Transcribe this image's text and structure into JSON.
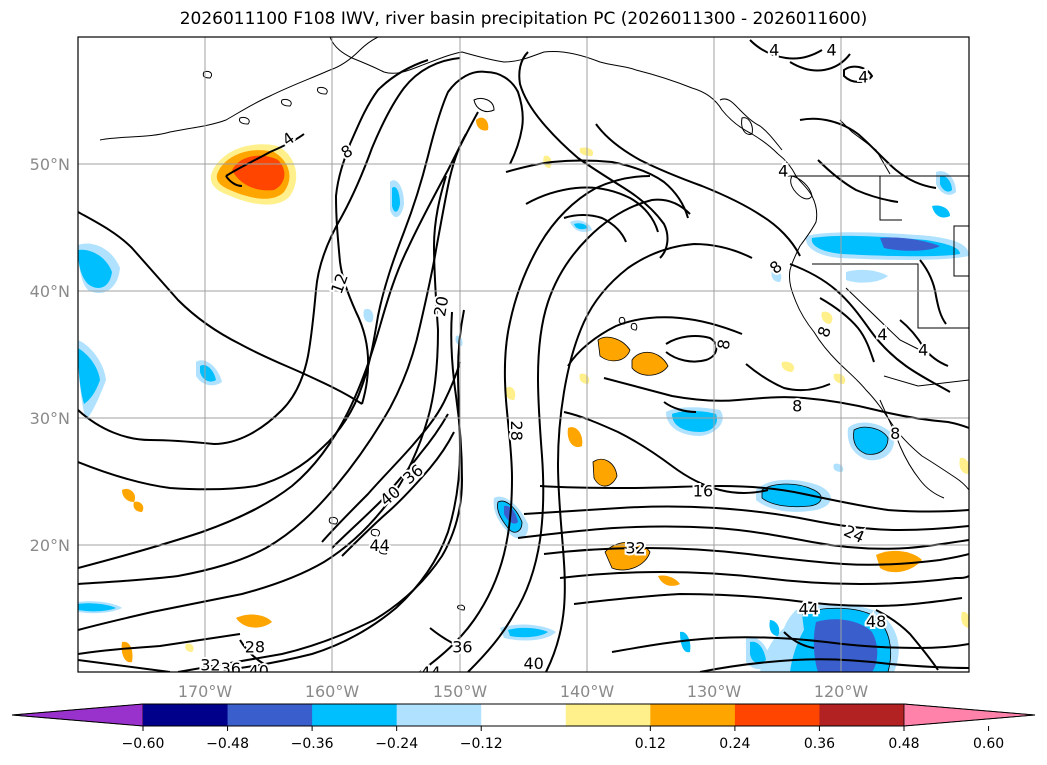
{
  "title": "2026011100 F108 IWV, river basin precipitation PC (2026011300 - 2026011600)",
  "map": {
    "lon_range": [
      -180,
      -110
    ],
    "lat_range": [
      10,
      60
    ],
    "lat_labels": [
      "50°N",
      "40°N",
      "30°N",
      "20°N"
    ],
    "lon_labels": [
      "170°W",
      "160°W",
      "150°W",
      "140°W",
      "130°W",
      "120°W"
    ],
    "gridlines": true,
    "contour_labels": [
      {
        "text": "4",
        "lon": -163.5,
        "lat": 52.0,
        "rot": -35
      },
      {
        "text": "8",
        "lon": -158.9,
        "lat": 51.0,
        "rot": -30
      },
      {
        "text": "12",
        "lon": -159.5,
        "lat": 40.6,
        "rot": -70
      },
      {
        "text": "20",
        "lon": -151.5,
        "lat": 38.8,
        "rot": -80
      },
      {
        "text": "28",
        "lon": -145.5,
        "lat": 29.0,
        "rot": 90
      },
      {
        "text": "36",
        "lon": -153.7,
        "lat": 25.6,
        "rot": -40
      },
      {
        "text": "40",
        "lon": -155.5,
        "lat": 23.9,
        "rot": -40
      },
      {
        "text": "44",
        "lon": -156.3,
        "lat": 20.0,
        "rot": 0
      },
      {
        "text": "16",
        "lon": -130.9,
        "lat": 24.3,
        "rot": 0
      },
      {
        "text": "24",
        "lon": -119.0,
        "lat": 20.9,
        "rot": 25
      },
      {
        "text": "32",
        "lon": -136.2,
        "lat": 19.8,
        "rot": 0
      },
      {
        "text": "44",
        "lon": -122.6,
        "lat": 15.0,
        "rot": 0
      },
      {
        "text": "48",
        "lon": -117.3,
        "lat": 14.0,
        "rot": 0
      },
      {
        "text": "28",
        "lon": -166.1,
        "lat": 12.0,
        "rot": 0
      },
      {
        "text": "32",
        "lon": -169.6,
        "lat": 10.6,
        "rot": 0
      },
      {
        "text": "36",
        "lon": -168.0,
        "lat": 10.3,
        "rot": 0
      },
      {
        "text": "40",
        "lon": -165.8,
        "lat": 10.1,
        "rot": 0
      },
      {
        "text": "36",
        "lon": -149.8,
        "lat": 12.0,
        "rot": 0
      },
      {
        "text": "40",
        "lon": -144.2,
        "lat": 10.7,
        "rot": 0
      },
      {
        "text": "44",
        "lon": -152.3,
        "lat": 10.0,
        "rot": 0
      },
      {
        "text": "8",
        "lon": -125.2,
        "lat": 41.9,
        "rot": -40
      },
      {
        "text": "8",
        "lon": -129.3,
        "lat": 35.8,
        "rot": -80
      },
      {
        "text": "8",
        "lon": -123.5,
        "lat": 31.0,
        "rot": 0
      },
      {
        "text": "8",
        "lon": -121.4,
        "lat": 36.8,
        "rot": -70
      },
      {
        "text": "4",
        "lon": -116.8,
        "lat": 36.6,
        "rot": 0
      },
      {
        "text": "4",
        "lon": -113.6,
        "lat": 35.4,
        "rot": 0
      },
      {
        "text": "8",
        "lon": -115.8,
        "lat": 28.8,
        "rot": 0
      },
      {
        "text": "4",
        "lon": -125.3,
        "lat": 59.0,
        "rot": 0
      },
      {
        "text": "4",
        "lon": -120.8,
        "lat": 59.0,
        "rot": 0
      },
      {
        "text": "4",
        "lon": -118.3,
        "lat": 56.9,
        "rot": 0
      },
      {
        "text": "4",
        "lon": -124.6,
        "lat": 49.5,
        "rot": 0
      }
    ]
  },
  "colorbar": {
    "colors": [
      "#9932cc",
      "#00008b",
      "#3a5fcd",
      "#00bfff",
      "#b0e2ff",
      "#ffffff",
      "#fff08c",
      "#ffa500",
      "#ff4500",
      "#b22222",
      "#ff82ab"
    ],
    "tick_labels": [
      "−0.60",
      "−0.48",
      "−0.36",
      "−0.24",
      "−0.12",
      "0.12",
      "0.24",
      "0.36",
      "0.48",
      "0.60"
    ],
    "levels": [
      -0.6,
      -0.48,
      -0.36,
      -0.24,
      -0.12,
      0.12,
      0.24,
      0.36,
      0.48,
      0.6
    ],
    "extend": "both"
  },
  "colors": {
    "contour": "#000000",
    "grid": "#a0a0a0",
    "tick_label": "#8a8a8a"
  }
}
